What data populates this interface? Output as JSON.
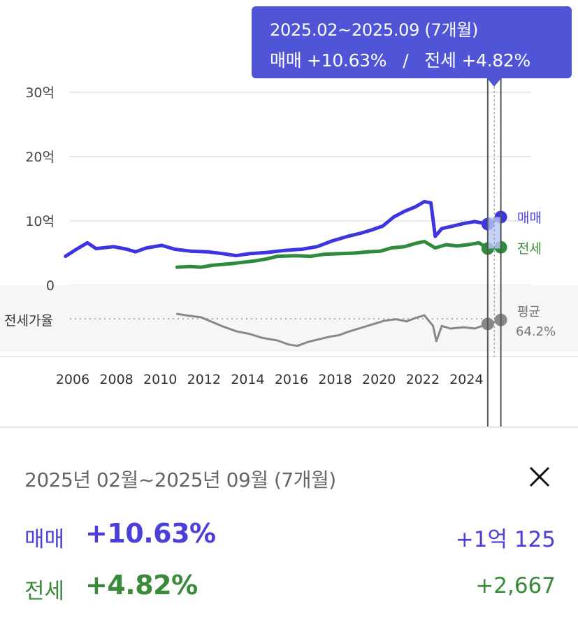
{
  "tooltip": {
    "period": "2025.02~2025.09 (7개월)",
    "sale_label": "매매",
    "sale_change": "+10.63%",
    "separator": "/",
    "jeonse_label": "전세",
    "jeonse_change": "+4.82%"
  },
  "chart_data": {
    "type": "line",
    "y_axis": {
      "ticks": [
        "30억",
        "20억",
        "10억",
        "0"
      ],
      "tick_values": [
        30,
        20,
        10,
        0
      ],
      "unit": "억"
    },
    "x_axis": {
      "ticks": [
        "2006",
        "2008",
        "2010",
        "2012",
        "2014",
        "2016",
        "2018",
        "2020",
        "2022",
        "2024"
      ]
    },
    "grid": true,
    "series": [
      {
        "name": "매매",
        "color": "#3d35e0",
        "points": [
          [
            2005.8,
            4.5
          ],
          [
            2006.3,
            5.6
          ],
          [
            2006.8,
            6.6
          ],
          [
            2007.2,
            5.7
          ],
          [
            2008.0,
            6.0
          ],
          [
            2008.6,
            5.6
          ],
          [
            2009.0,
            5.2
          ],
          [
            2009.5,
            5.8
          ],
          [
            2010.2,
            6.2
          ],
          [
            2010.8,
            5.6
          ],
          [
            2011.5,
            5.3
          ],
          [
            2012.3,
            5.2
          ],
          [
            2013.0,
            4.9
          ],
          [
            2013.6,
            4.6
          ],
          [
            2014.2,
            4.9
          ],
          [
            2015.0,
            5.1
          ],
          [
            2015.8,
            5.4
          ],
          [
            2016.6,
            5.6
          ],
          [
            2017.3,
            6.0
          ],
          [
            2018.0,
            6.9
          ],
          [
            2018.7,
            7.6
          ],
          [
            2019.3,
            8.1
          ],
          [
            2019.8,
            8.6
          ],
          [
            2020.3,
            9.2
          ],
          [
            2020.8,
            10.6
          ],
          [
            2021.3,
            11.5
          ],
          [
            2021.8,
            12.2
          ],
          [
            2022.2,
            13.0
          ],
          [
            2022.5,
            12.8
          ],
          [
            2022.7,
            7.6
          ],
          [
            2023.0,
            8.8
          ],
          [
            2023.5,
            9.2
          ],
          [
            2024.0,
            9.6
          ],
          [
            2024.5,
            9.9
          ],
          [
            2025.1,
            9.5
          ],
          [
            2025.7,
            10.6
          ]
        ]
      },
      {
        "name": "전세",
        "color": "#2e8b3e",
        "points": [
          [
            2010.9,
            2.8
          ],
          [
            2011.5,
            2.9
          ],
          [
            2012.0,
            2.8
          ],
          [
            2012.5,
            3.1
          ],
          [
            2013.5,
            3.4
          ],
          [
            2014.5,
            3.8
          ],
          [
            2015.0,
            4.1
          ],
          [
            2015.5,
            4.5
          ],
          [
            2016.3,
            4.6
          ],
          [
            2017.0,
            4.5
          ],
          [
            2017.6,
            4.8
          ],
          [
            2018.3,
            4.9
          ],
          [
            2019.0,
            5.0
          ],
          [
            2019.6,
            5.2
          ],
          [
            2020.2,
            5.3
          ],
          [
            2020.7,
            5.8
          ],
          [
            2021.3,
            6.0
          ],
          [
            2021.8,
            6.5
          ],
          [
            2022.2,
            6.8
          ],
          [
            2022.7,
            5.8
          ],
          [
            2023.2,
            6.3
          ],
          [
            2023.7,
            6.1
          ],
          [
            2024.2,
            6.3
          ],
          [
            2024.7,
            6.6
          ],
          [
            2025.1,
            5.7
          ],
          [
            2025.7,
            5.9
          ]
        ]
      },
      {
        "name": "전세가율",
        "color": "#888888",
        "points": [
          [
            2010.9,
            -7.2
          ],
          [
            2011.5,
            -6.9
          ],
          [
            2012.0,
            -6.7
          ],
          [
            2012.5,
            -6.0
          ],
          [
            2013.0,
            -5.3
          ],
          [
            2013.6,
            -4.6
          ],
          [
            2014.2,
            -4.2
          ],
          [
            2014.8,
            -3.6
          ],
          [
            2015.5,
            -3.2
          ],
          [
            2016.0,
            -2.6
          ],
          [
            2016.4,
            -2.4
          ],
          [
            2016.9,
            -3.0
          ],
          [
            2017.4,
            -3.4
          ],
          [
            2017.9,
            -3.8
          ],
          [
            2018.3,
            -4.0
          ],
          [
            2018.7,
            -4.5
          ],
          [
            2019.2,
            -5.0
          ],
          [
            2019.8,
            -5.6
          ],
          [
            2020.4,
            -6.2
          ],
          [
            2020.9,
            -6.4
          ],
          [
            2021.4,
            -6.1
          ],
          [
            2021.8,
            -6.6
          ],
          [
            2022.2,
            -7.0
          ],
          [
            2022.6,
            -5.4
          ],
          [
            2022.75,
            -3.1
          ],
          [
            2023.0,
            -5.4
          ],
          [
            2023.4,
            -5.0
          ],
          [
            2024.0,
            -5.2
          ],
          [
            2024.5,
            -5.0
          ],
          [
            2025.1,
            -5.7
          ],
          [
            2025.7,
            -6.3
          ]
        ]
      }
    ],
    "ratio_band_label": "전세가율",
    "legend": [
      {
        "name": "매매",
        "color": "#4a3fd8"
      },
      {
        "name": "전세",
        "color": "#3a8a3a"
      }
    ],
    "average": {
      "label": "평균",
      "value": "64.2%"
    },
    "selection": {
      "start": 2025.1,
      "end": 2025.7
    }
  },
  "panel": {
    "period_text": "2025년 02월~2025년 09월 (7개월)",
    "close_icon": "close-icon",
    "rows": [
      {
        "label": "매매",
        "percent": "+10.63%",
        "amount": "+1억 125",
        "color": "#4a3fd8"
      },
      {
        "label": "전세",
        "percent": "+4.82%",
        "amount": "+2,667",
        "color": "#3a8a3a"
      }
    ]
  }
}
